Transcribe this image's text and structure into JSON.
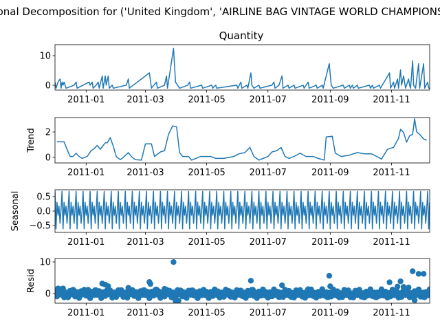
{
  "figure": {
    "suptitle": "Seasonal Decomposition for ('United Kingdom', 'AIRLINE BAG VINTAGE WORLD CHAMPIONSHIP')",
    "top_title": "Quantity"
  },
  "x_axis": {
    "start_date": "2010-12-01",
    "end_date": "2011-12-09",
    "ticks": [
      "2011-01",
      "2011-03",
      "2011-05",
      "2011-07",
      "2011-09",
      "2011-11"
    ]
  },
  "chart_data": [
    {
      "type": "line",
      "panel": "observed",
      "title": "Quantity",
      "ylabel": "",
      "color": "#1f77b4",
      "ylim": [
        -0.6,
        14.2
      ],
      "yticks": [
        "0",
        "10"
      ],
      "points": [
        [
          "2010-12-01",
          2
        ],
        [
          "2010-12-02",
          0
        ],
        [
          "2010-12-04",
          2
        ],
        [
          "2010-12-06",
          3
        ],
        [
          "2010-12-07",
          0
        ],
        [
          "2010-12-08",
          2
        ],
        [
          "2010-12-09",
          1
        ],
        [
          "2010-12-10",
          2
        ],
        [
          "2010-12-12",
          0
        ],
        [
          "2010-12-20",
          1
        ],
        [
          "2010-12-22",
          2
        ],
        [
          "2010-12-23",
          0
        ],
        [
          "2011-01-04",
          2
        ],
        [
          "2011-01-05",
          1
        ],
        [
          "2011-01-07",
          2
        ],
        [
          "2011-01-08",
          0
        ],
        [
          "2011-01-11",
          1
        ],
        [
          "2011-01-13",
          2
        ],
        [
          "2011-01-14",
          0
        ],
        [
          "2011-01-17",
          4
        ],
        [
          "2011-01-18",
          0
        ],
        [
          "2011-01-20",
          4
        ],
        [
          "2011-01-21",
          1
        ],
        [
          "2011-01-23",
          4
        ],
        [
          "2011-01-24",
          0
        ],
        [
          "2011-01-27",
          1
        ],
        [
          "2011-01-28",
          0
        ],
        [
          "2011-02-10",
          1
        ],
        [
          "2011-02-12",
          3
        ],
        [
          "2011-02-13",
          0
        ],
        [
          "2011-03-05",
          5
        ],
        [
          "2011-03-07",
          0
        ],
        [
          "2011-03-12",
          2
        ],
        [
          "2011-03-13",
          0
        ],
        [
          "2011-03-20",
          1
        ],
        [
          "2011-03-22",
          4
        ],
        [
          "2011-03-23",
          0
        ],
        [
          "2011-03-29",
          13
        ],
        [
          "2011-03-31",
          2
        ],
        [
          "2011-04-02",
          1
        ],
        [
          "2011-04-04",
          0
        ],
        [
          "2011-04-12",
          1
        ],
        [
          "2011-04-14",
          2
        ],
        [
          "2011-04-15",
          0
        ],
        [
          "2011-04-26",
          1
        ],
        [
          "2011-04-27",
          0
        ],
        [
          "2011-05-06",
          1
        ],
        [
          "2011-05-07",
          0
        ],
        [
          "2011-05-10",
          1
        ],
        [
          "2011-05-11",
          0
        ],
        [
          "2011-05-31",
          1
        ],
        [
          "2011-06-01",
          0
        ],
        [
          "2011-06-04",
          2
        ],
        [
          "2011-06-05",
          0
        ],
        [
          "2011-06-10",
          1
        ],
        [
          "2011-06-11",
          0
        ],
        [
          "2011-06-14",
          5
        ],
        [
          "2011-06-15",
          1
        ],
        [
          "2011-06-17",
          0
        ],
        [
          "2011-06-22",
          1
        ],
        [
          "2011-06-23",
          0
        ],
        [
          "2011-07-05",
          1
        ],
        [
          "2011-07-07",
          2
        ],
        [
          "2011-07-08",
          0
        ],
        [
          "2011-07-12",
          1
        ],
        [
          "2011-07-15",
          4
        ],
        [
          "2011-07-16",
          0
        ],
        [
          "2011-07-21",
          1
        ],
        [
          "2011-07-22",
          0
        ],
        [
          "2011-07-27",
          1
        ],
        [
          "2011-07-28",
          0
        ],
        [
          "2011-08-05",
          1
        ],
        [
          "2011-08-06",
          0
        ],
        [
          "2011-08-10",
          2
        ],
        [
          "2011-08-11",
          0
        ],
        [
          "2011-08-18",
          1
        ],
        [
          "2011-08-19",
          0
        ],
        [
          "2011-08-24",
          1
        ],
        [
          "2011-08-25",
          0
        ],
        [
          "2011-08-31",
          8
        ],
        [
          "2011-09-02",
          1
        ],
        [
          "2011-09-04",
          0
        ],
        [
          "2011-09-14",
          1
        ],
        [
          "2011-09-15",
          0
        ],
        [
          "2011-09-20",
          1
        ],
        [
          "2011-09-21",
          0
        ],
        [
          "2011-09-23",
          1
        ],
        [
          "2011-09-24",
          0
        ],
        [
          "2011-09-28",
          1
        ],
        [
          "2011-09-29",
          0
        ],
        [
          "2011-10-10",
          1
        ],
        [
          "2011-10-11",
          0
        ],
        [
          "2011-10-13",
          1
        ],
        [
          "2011-10-14",
          0
        ],
        [
          "2011-10-20",
          1
        ],
        [
          "2011-10-21",
          0
        ],
        [
          "2011-10-30",
          5
        ],
        [
          "2011-10-31",
          0
        ],
        [
          "2011-11-03",
          2
        ],
        [
          "2011-11-04",
          0
        ],
        [
          "2011-11-07",
          3
        ],
        [
          "2011-11-08",
          0
        ],
        [
          "2011-11-10",
          6
        ],
        [
          "2011-11-11",
          1
        ],
        [
          "2011-11-13",
          4
        ],
        [
          "2011-11-14",
          2
        ],
        [
          "2011-11-15",
          0
        ],
        [
          "2011-11-18",
          3
        ],
        [
          "2011-11-19",
          1
        ],
        [
          "2011-11-20",
          0
        ],
        [
          "2011-11-22",
          9
        ],
        [
          "2011-11-23",
          1
        ],
        [
          "2011-11-25",
          0
        ],
        [
          "2011-11-28",
          8
        ],
        [
          "2011-11-29",
          0
        ],
        [
          "2011-12-03",
          8
        ],
        [
          "2011-12-04",
          0
        ],
        [
          "2011-12-07",
          2
        ],
        [
          "2011-12-08",
          0
        ],
        [
          "2011-12-09",
          0
        ]
      ]
    },
    {
      "type": "line",
      "panel": "trend",
      "ylabel": "Trend",
      "color": "#1f77b4",
      "ylim": [
        -0.2,
        3.3
      ],
      "yticks": [
        "0",
        "2"
      ],
      "points": [
        [
          "2010-12-03",
          1.43
        ],
        [
          "2010-12-10",
          1.43
        ],
        [
          "2010-12-13",
          0.85
        ],
        [
          "2010-12-16",
          0.3
        ],
        [
          "2010-12-19",
          0.3
        ],
        [
          "2010-12-22",
          0.55
        ],
        [
          "2010-12-25",
          0.3
        ],
        [
          "2010-12-28",
          0.15
        ],
        [
          "2011-01-02",
          0.3
        ],
        [
          "2011-01-06",
          0.75
        ],
        [
          "2011-01-09",
          0.9
        ],
        [
          "2011-01-12",
          1.15
        ],
        [
          "2011-01-15",
          0.85
        ],
        [
          "2011-01-18",
          1.15
        ],
        [
          "2011-01-20",
          1.35
        ],
        [
          "2011-01-22",
          1.35
        ],
        [
          "2011-01-25",
          1.75
        ],
        [
          "2011-01-28",
          1.1
        ],
        [
          "2011-01-31",
          0.3
        ],
        [
          "2011-02-04",
          0.05
        ],
        [
          "2011-02-08",
          0.3
        ],
        [
          "2011-02-12",
          0.6
        ],
        [
          "2011-02-15",
          0.3
        ],
        [
          "2011-02-19",
          0.05
        ],
        [
          "2011-02-25",
          0.02
        ],
        [
          "2011-03-01",
          1.27
        ],
        [
          "2011-03-07",
          1.27
        ],
        [
          "2011-03-10",
          0.3
        ],
        [
          "2011-03-16",
          0.65
        ],
        [
          "2011-03-20",
          0.75
        ],
        [
          "2011-03-24",
          2.0
        ],
        [
          "2011-03-28",
          2.65
        ],
        [
          "2011-04-01",
          2.6
        ],
        [
          "2011-04-04",
          0.6
        ],
        [
          "2011-04-07",
          0.3
        ],
        [
          "2011-04-13",
          0.3
        ],
        [
          "2011-04-16",
          0.02
        ],
        [
          "2011-04-25",
          0.3
        ],
        [
          "2011-05-05",
          0.3
        ],
        [
          "2011-05-10",
          0.15
        ],
        [
          "2011-05-18",
          0.15
        ],
        [
          "2011-05-28",
          0.3
        ],
        [
          "2011-06-02",
          0.5
        ],
        [
          "2011-06-08",
          0.6
        ],
        [
          "2011-06-13",
          1.0
        ],
        [
          "2011-06-17",
          0.3
        ],
        [
          "2011-06-22",
          0.02
        ],
        [
          "2011-07-01",
          0.3
        ],
        [
          "2011-07-05",
          0.65
        ],
        [
          "2011-07-10",
          0.75
        ],
        [
          "2011-07-14",
          1.0
        ],
        [
          "2011-07-18",
          0.3
        ],
        [
          "2011-07-22",
          0.15
        ],
        [
          "2011-07-27",
          0.3
        ],
        [
          "2011-08-02",
          0.55
        ],
        [
          "2011-08-08",
          0.3
        ],
        [
          "2011-08-15",
          0.3
        ],
        [
          "2011-08-20",
          0.15
        ],
        [
          "2011-08-26",
          0.02
        ],
        [
          "2011-08-28",
          1.8
        ],
        [
          "2011-09-03",
          1.85
        ],
        [
          "2011-09-06",
          0.55
        ],
        [
          "2011-09-12",
          0.3
        ],
        [
          "2011-09-20",
          0.4
        ],
        [
          "2011-09-28",
          0.6
        ],
        [
          "2011-10-05",
          0.5
        ],
        [
          "2011-10-12",
          0.5
        ],
        [
          "2011-10-16",
          0.35
        ],
        [
          "2011-10-22",
          0.1
        ],
        [
          "2011-10-28",
          0.85
        ],
        [
          "2011-11-03",
          1.0
        ],
        [
          "2011-11-08",
          1.7
        ],
        [
          "2011-11-10",
          2.4
        ],
        [
          "2011-11-13",
          2.15
        ],
        [
          "2011-11-16",
          1.4
        ],
        [
          "2011-11-19",
          1.9
        ],
        [
          "2011-11-22",
          2.0
        ],
        [
          "2011-11-24",
          3.2
        ],
        [
          "2011-11-26",
          2.2
        ],
        [
          "2011-11-29",
          2.0
        ],
        [
          "2011-12-03",
          1.65
        ],
        [
          "2011-12-06",
          1.55
        ]
      ]
    },
    {
      "type": "line",
      "panel": "seasonal",
      "ylabel": "Seasonal",
      "color": "#1f77b4",
      "ylim": [
        -0.78,
        0.78
      ],
      "yticks": [
        "0.5",
        "0.0",
        "−0.5"
      ],
      "period_days": 7,
      "start": "2010-12-01",
      "end": "2011-12-09",
      "cycle": [
        0.72,
        -0.65,
        0.32,
        -0.15,
        0.18,
        -0.45,
        0.05
      ]
    },
    {
      "type": "scatter",
      "panel": "resid",
      "ylabel": "Resid",
      "color": "#1f77b4",
      "ylim": [
        -2.9,
        10.8
      ],
      "yticks": [
        "0",
        "10"
      ],
      "points": [
        [
          "2010-12-04",
          1.6
        ],
        [
          "2010-12-07",
          1.4
        ],
        [
          "2010-12-09",
          1.6
        ],
        [
          "2010-12-20",
          0.9
        ],
        [
          "2011-01-03",
          1.2
        ],
        [
          "2011-01-17",
          3.1
        ],
        [
          "2011-01-20",
          2.8
        ],
        [
          "2011-01-23",
          2.3
        ],
        [
          "2011-02-12",
          1.8
        ],
        [
          "2011-03-05",
          3.6
        ],
        [
          "2011-03-06",
          3.0
        ],
        [
          "2011-03-12",
          1.3
        ],
        [
          "2011-03-20",
          1.5
        ],
        [
          "2011-03-29",
          9.7
        ],
        [
          "2011-03-31",
          -2.2
        ],
        [
          "2011-04-03",
          -2.1
        ],
        [
          "2011-06-14",
          4.0
        ],
        [
          "2011-06-16",
          1.2
        ],
        [
          "2011-07-15",
          2.6
        ],
        [
          "2011-08-10",
          1.4
        ],
        [
          "2011-08-31",
          5.5
        ],
        [
          "2011-09-01",
          2.3
        ],
        [
          "2011-10-30",
          3.5
        ],
        [
          "2011-11-07",
          2.2
        ],
        [
          "2011-11-10",
          3.8
        ],
        [
          "2011-11-13",
          2.1
        ],
        [
          "2011-11-18",
          1.9
        ],
        [
          "2011-11-22",
          6.9
        ],
        [
          "2011-11-24",
          -2.0
        ],
        [
          "2011-11-28",
          6.1
        ],
        [
          "2011-12-03",
          6.1
        ],
        [
          "2011-12-07",
          0.4
        ]
      ]
    }
  ]
}
